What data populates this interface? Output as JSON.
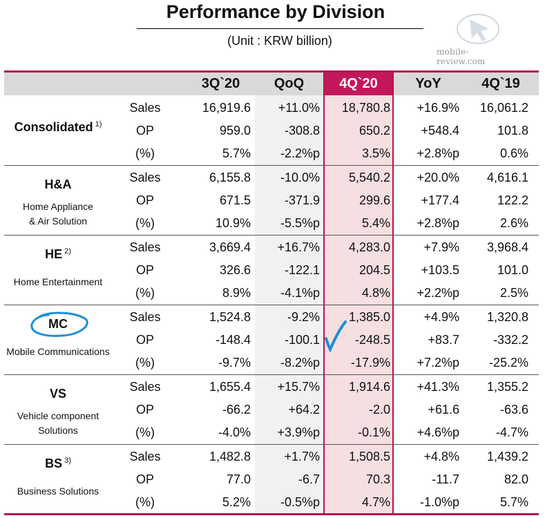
{
  "title": "Performance by Division",
  "unit": "(Unit : KRW billion)",
  "watermark": "mobile-review.com",
  "columns": [
    "3Q`20",
    "QoQ",
    "4Q`20",
    "YoY",
    "4Q`19"
  ],
  "metrics": [
    "Sales",
    "OP",
    "(%)"
  ],
  "divisions": [
    {
      "name": "Consolidated",
      "sup": "1)",
      "sub": "",
      "rows": [
        [
          "16,919.6",
          "+11.0%",
          "18,780.8",
          "+16.9%",
          "16,061.2"
        ],
        [
          "959.0",
          "-308.8",
          "650.2",
          "+548.4",
          "101.8"
        ],
        [
          "5.7%",
          "-2.2%p",
          "3.5%",
          "+2.8%p",
          "0.6%"
        ]
      ]
    },
    {
      "name": "H&A",
      "sup": "",
      "sub": "Home Appliance\n& Air Solution",
      "rows": [
        [
          "6,155.8",
          "-10.0%",
          "5,540.2",
          "+20.0%",
          "4,616.1"
        ],
        [
          "671.5",
          "-371.9",
          "299.6",
          "+177.4",
          "122.2"
        ],
        [
          "10.9%",
          "-5.5%p",
          "5.4%",
          "+2.8%p",
          "2.6%"
        ]
      ]
    },
    {
      "name": "HE",
      "sup": "2)",
      "sub": "Home Entertainment",
      "rows": [
        [
          "3,669.4",
          "+16.7%",
          "4,283.0",
          "+7.9%",
          "3,968.4"
        ],
        [
          "326.6",
          "-122.1",
          "204.5",
          "+103.5",
          "101.0"
        ],
        [
          "8.9%",
          "-4.1%p",
          "4.8%",
          "+2.2%p",
          "2.5%"
        ]
      ]
    },
    {
      "name": "MC",
      "sup": "",
      "sub": "Mobile Communications",
      "rows": [
        [
          "1,524.8",
          "-9.2%",
          "1,385.0",
          "+4.9%",
          "1,320.8"
        ],
        [
          "-148.4",
          "-100.1",
          "-248.5",
          "+83.7",
          "-332.2"
        ],
        [
          "-9.7%",
          "-8.2%p",
          "-17.9%",
          "+7.2%p",
          "-25.2%"
        ]
      ]
    },
    {
      "name": "VS",
      "sup": "",
      "sub": "Vehicle component\nSolutions",
      "rows": [
        [
          "1,655.4",
          "+15.7%",
          "1,914.6",
          "+41.3%",
          "1,355.2"
        ],
        [
          "-66.2",
          "+64.2",
          "-2.0",
          "+61.6",
          "-63.6"
        ],
        [
          "-4.0%",
          "+3.9%p",
          "-0.1%",
          "+4.6%p",
          "-4.7%"
        ]
      ]
    },
    {
      "name": "BS",
      "sup": "3)",
      "sub": "Business Solutions",
      "rows": [
        [
          "1,482.8",
          "+1.7%",
          "1,508.5",
          "+4.8%",
          "1,439.2"
        ],
        [
          "77.0",
          "-6.7",
          "70.3",
          "-11.7",
          "82.0"
        ],
        [
          "5.2%",
          "-0.5%p",
          "4.7%",
          "-1.0%p",
          "5.7%"
        ]
      ]
    }
  ],
  "colors": {
    "accent": "#c2185b",
    "highlight": "#f5dfe0",
    "header": "#d9d9d9",
    "annotation": "#1a8fd6"
  }
}
